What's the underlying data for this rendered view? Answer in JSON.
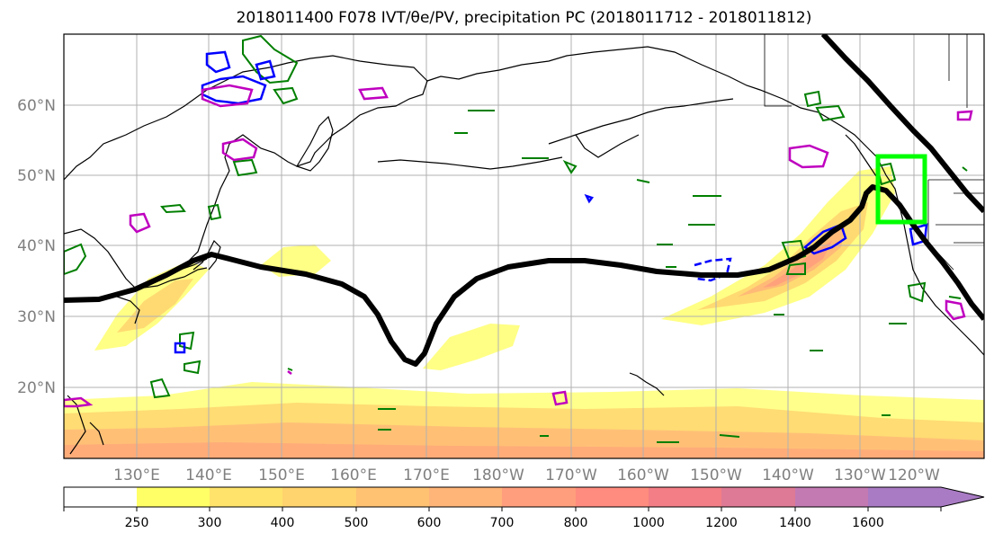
{
  "title": {
    "main": "2018011400 F078 IVT/θe/PV, precipitation PC (2018011712 - 2018011812)"
  },
  "map": {
    "lat_labels": [
      "60°N",
      "50°N",
      "40°N",
      "30°N",
      "20°N"
    ],
    "lon_labels": [
      "130°E",
      "140°E",
      "150°E",
      "160°E",
      "170°E",
      "180°W",
      "170°W",
      "160°W",
      "150°W",
      "140°W",
      "130°W",
      "120°W"
    ],
    "colors": {
      "theta_e_contour": "#000000",
      "target_box": "#00ff00",
      "green_contours": "#007f00",
      "blue_contours": "#0000ff",
      "magenta_contours": "#bf00bf",
      "gridlines": "#b0b0b0",
      "coastline": "#000000"
    }
  },
  "colorbar": {
    "levels": [
      "250",
      "300",
      "400",
      "500",
      "600",
      "700",
      "800",
      "1000",
      "1200",
      "1400",
      "1600"
    ],
    "colors": [
      "#ffff66",
      "#ffe36b",
      "#ffd36e",
      "#ffc172",
      "#ffb478",
      "#ff9e7c",
      "#ff8c7e",
      "#f37e85",
      "#de7a95",
      "#c37ab3",
      "#a97bc4"
    ]
  }
}
